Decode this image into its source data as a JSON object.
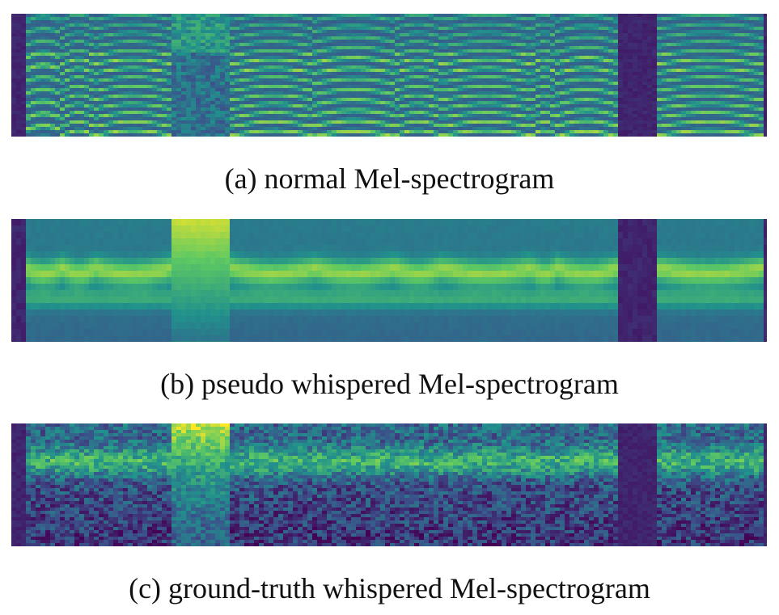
{
  "figure": {
    "panels": [
      {
        "id": "a",
        "caption": "(a) normal Mel-spectrogram",
        "style": "harmonic"
      },
      {
        "id": "b",
        "caption": "(b) pseudo whispered Mel-spectrogram",
        "style": "smooth"
      },
      {
        "id": "c",
        "caption": "(c) ground-truth whispered Mel-spectrogram",
        "style": "noisy"
      }
    ]
  },
  "colormap": [
    "#440154",
    "#3b528b",
    "#21918c",
    "#5ec962",
    "#fde725"
  ]
}
